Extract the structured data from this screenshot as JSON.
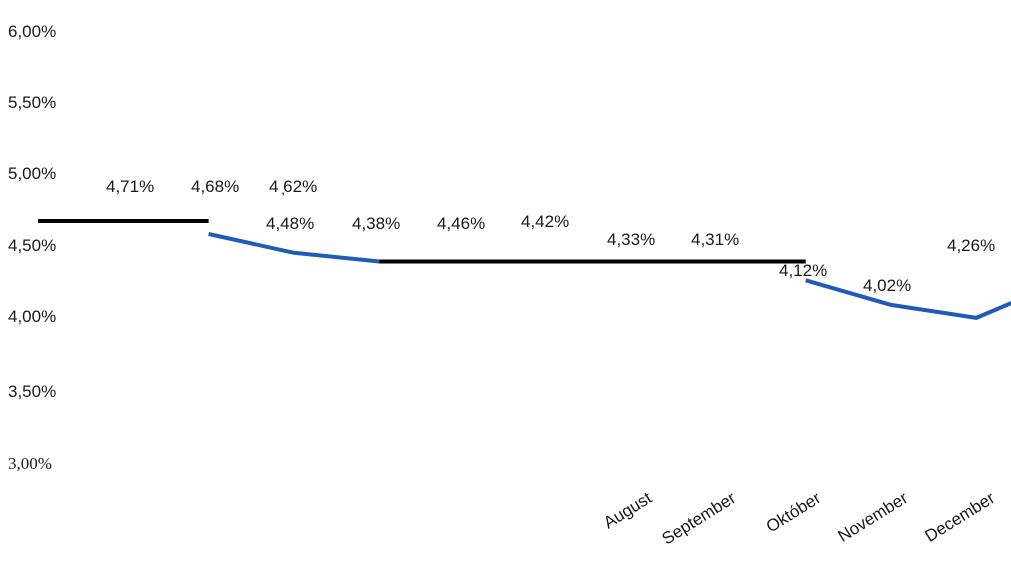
{
  "chart_data": {
    "type": "line",
    "y_ticks": [
      "6,00%",
      "5,50%",
      "5,00%",
      "4,50%",
      "4,00%",
      "3,50%",
      "3,00%"
    ],
    "ylim": [
      3.0,
      6.0
    ],
    "grid": false,
    "x_labels": [
      "August",
      "September",
      "Október",
      "November",
      "December"
    ],
    "data_labels": [
      "4,71%",
      "4,68%",
      "4 ̦62%",
      "4,48%",
      "4,38%",
      "4,46%",
      "4,42%",
      "4,33%",
      "4,31%",
      "4,12%",
      "4,02%",
      "4,26%"
    ],
    "series": [
      {
        "segments": [
          {
            "color": "#000000",
            "points": [
              [
                0.0,
                4.68
              ],
              [
                2.0,
                4.68
              ]
            ]
          },
          {
            "color": "#1f5cb8",
            "points": [
              [
                2.0,
                4.59
              ],
              [
                3.0,
                4.46
              ],
              [
                4.0,
                4.4
              ]
            ]
          },
          {
            "color": "#000000",
            "points": [
              [
                4.0,
                4.4
              ],
              [
                9.0,
                4.4
              ]
            ]
          },
          {
            "color": "#1f5cb8",
            "points": [
              [
                9.0,
                4.27
              ],
              [
                10.0,
                4.1
              ],
              [
                11.0,
                4.01
              ],
              [
                12.0,
                4.26
              ]
            ]
          }
        ]
      }
    ],
    "colors": {
      "black_line": "#000000",
      "blue_line": "#1f5cb8"
    }
  }
}
